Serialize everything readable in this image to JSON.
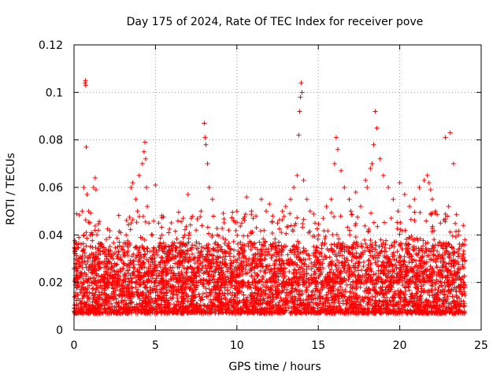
{
  "chart_data": {
    "type": "scatter",
    "title": "Day 175 of 2024, Rate Of TEC Index for receiver pove",
    "xlabel": "GPS time / hours",
    "ylabel": "ROTI / TECUs",
    "xlim": [
      0,
      25
    ],
    "ylim": [
      0,
      0.12
    ],
    "xticks": [
      0,
      5,
      10,
      15,
      20,
      25
    ],
    "xtick_labels": [
      "0",
      "5",
      "10",
      "15",
      "20",
      "25"
    ],
    "yticks": [
      0,
      0.02,
      0.04,
      0.06,
      0.08,
      0.1,
      0.12
    ],
    "ytick_labels": [
      "0",
      "0.02",
      "0.04",
      "0.06",
      "0.08",
      "0.1",
      "0.12"
    ],
    "grid": true,
    "marker": "+",
    "color": "#ff0000",
    "series": [
      {
        "name": "ROTI",
        "x": [
          0.05,
          0.1,
          0.2,
          0.3,
          0.4,
          0.5,
          0.6,
          0.68,
          0.7,
          0.72,
          0.75,
          0.8,
          0.9,
          1.0,
          1.2,
          1.3,
          1.35,
          1.5,
          1.7,
          1.9,
          2.0,
          2.1,
          2.3,
          2.5,
          2.7,
          3.0,
          3.2,
          3.5,
          3.5,
          3.6,
          3.8,
          3.9,
          4.0,
          4.2,
          4.3,
          4.35,
          4.4,
          4.45,
          4.5,
          4.6,
          4.8,
          5.0,
          5.2,
          5.4,
          5.6,
          5.8,
          6.0,
          6.2,
          6.5,
          6.8,
          7.0,
          7.2,
          7.5,
          7.8,
          8.0,
          8.05,
          8.1,
          8.2,
          8.3,
          8.5,
          8.8,
          9.0,
          9.3,
          9.5,
          9.8,
          10.0,
          10.3,
          10.6,
          10.9,
          11.0,
          11.2,
          11.5,
          11.8,
          12.0,
          12.2,
          12.5,
          12.8,
          13.0,
          13.3,
          13.5,
          13.7,
          13.8,
          13.85,
          13.9,
          13.95,
          14.0,
          14.1,
          14.3,
          14.5,
          14.8,
          15.0,
          15.3,
          15.5,
          15.8,
          16.0,
          16.1,
          16.2,
          16.4,
          16.6,
          16.9,
          17.0,
          17.3,
          17.6,
          17.9,
          18.0,
          18.2,
          18.3,
          18.4,
          18.5,
          18.6,
          18.8,
          19.0,
          19.3,
          19.6,
          19.9,
          20.0,
          20.3,
          20.6,
          20.9,
          21.2,
          21.5,
          21.7,
          21.8,
          21.9,
          22.0,
          22.2,
          22.5,
          22.8,
          23.0,
          23.1,
          23.3,
          23.6,
          23.9,
          24.0
        ],
        "y": [
          0.033,
          0.028,
          0.025,
          0.03,
          0.027,
          0.05,
          0.06,
          0.104,
          0.105,
          0.103,
          0.077,
          0.057,
          0.05,
          0.04,
          0.06,
          0.064,
          0.059,
          0.042,
          0.035,
          0.032,
          0.03,
          0.029,
          0.026,
          0.028,
          0.03,
          0.035,
          0.04,
          0.045,
          0.06,
          0.062,
          0.055,
          0.05,
          0.065,
          0.07,
          0.075,
          0.079,
          0.072,
          0.06,
          0.052,
          0.045,
          0.04,
          0.061,
          0.045,
          0.04,
          0.035,
          0.032,
          0.03,
          0.028,
          0.035,
          0.04,
          0.057,
          0.047,
          0.042,
          0.05,
          0.087,
          0.081,
          0.078,
          0.07,
          0.06,
          0.055,
          0.04,
          0.035,
          0.038,
          0.042,
          0.046,
          0.05,
          0.045,
          0.056,
          0.05,
          0.047,
          0.043,
          0.055,
          0.05,
          0.053,
          0.048,
          0.045,
          0.05,
          0.052,
          0.055,
          0.06,
          0.065,
          0.082,
          0.092,
          0.098,
          0.104,
          0.1,
          0.063,
          0.055,
          0.05,
          0.045,
          0.04,
          0.047,
          0.052,
          0.055,
          0.07,
          0.081,
          0.076,
          0.067,
          0.06,
          0.055,
          0.05,
          0.058,
          0.052,
          0.063,
          0.06,
          0.068,
          0.07,
          0.078,
          0.092,
          0.085,
          0.072,
          0.065,
          0.06,
          0.055,
          0.05,
          0.062,
          0.057,
          0.052,
          0.055,
          0.06,
          0.063,
          0.065,
          0.062,
          0.059,
          0.055,
          0.05,
          0.045,
          0.081,
          0.052,
          0.083,
          0.07,
          0.04,
          0.044,
          0.038
        ],
        "band": "dense baseline of points between about 0.008 and 0.03 TECUs across 0–24 h"
      }
    ]
  }
}
